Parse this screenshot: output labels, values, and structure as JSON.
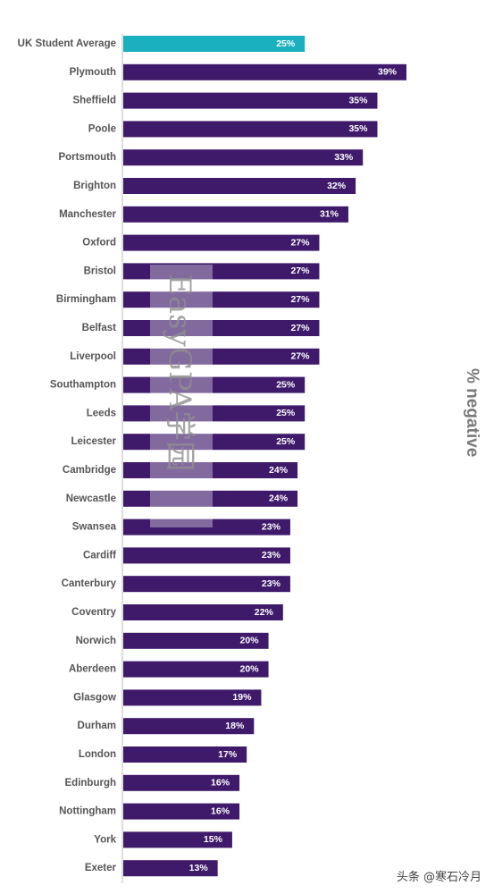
{
  "chart_data": {
    "type": "bar",
    "orientation": "horizontal",
    "ylabel": "% negative",
    "categories": [
      "UK Student Average",
      "Plymouth",
      "Sheffield",
      "Poole",
      "Portsmouth",
      "Brighton",
      "Manchester",
      "Oxford",
      "Bristol",
      "Birmingham",
      "Belfast",
      "Liverpool",
      "Southampton",
      "Leeds",
      "Leicester",
      "Cambridge",
      "Newcastle",
      "Swansea",
      "Cardiff",
      "Canterbury",
      "Coventry",
      "Norwich",
      "Aberdeen",
      "Glasgow",
      "Durham",
      "London",
      "Edinburgh",
      "Nottingham",
      "York",
      "Exeter"
    ],
    "values": [
      25,
      39,
      35,
      35,
      33,
      32,
      31,
      27,
      27,
      27,
      27,
      27,
      25,
      25,
      25,
      24,
      24,
      23,
      23,
      23,
      22,
      20,
      20,
      19,
      18,
      17,
      16,
      16,
      15,
      13
    ],
    "value_labels": [
      "25%",
      "39%",
      "35%",
      "35%",
      "33%",
      "32%",
      "31%",
      "27%",
      "27%",
      "27%",
      "27%",
      "27%",
      "25%",
      "25%",
      "25%",
      "24%",
      "24%",
      "23%",
      "23%",
      "23%",
      "22%",
      "20%",
      "20%",
      "19%",
      "18%",
      "17%",
      "16%",
      "16%",
      "15%",
      "13%"
    ],
    "xlim": [
      0,
      39
    ],
    "grid": false,
    "legend": "none",
    "highlight_index": 0
  },
  "colors": {
    "bar": "#3f1a6b",
    "highlight": "#1bb0bf",
    "axis": "#bbbbbb"
  },
  "watermark": "EasyGPA学园",
  "credit": "头条 @寒石冷月"
}
